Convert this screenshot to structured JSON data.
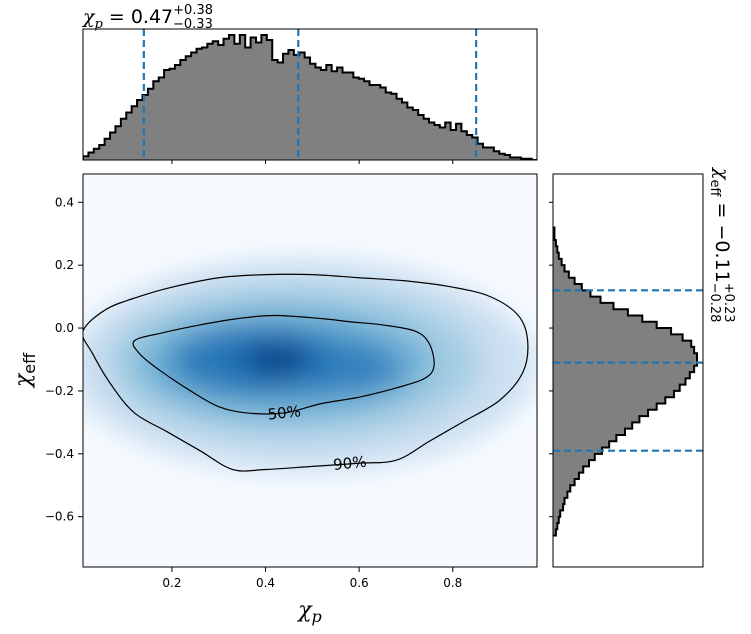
{
  "chart_data": [
    {
      "type": "histogram",
      "panel": "top-marginal",
      "title": {
        "symbol": "χ",
        "symbol_sub": "p",
        "equals": " = 0.47",
        "sup": "+0.38",
        "sub": "−0.33"
      },
      "xlim": [
        0.01,
        0.98
      ],
      "bins": [
        0.01,
        0.0216,
        0.0331,
        0.0447,
        0.0562,
        0.0678,
        0.0793,
        0.0909,
        0.1024,
        0.114,
        0.1255,
        0.1371,
        0.1486,
        0.1602,
        0.1717,
        0.1833,
        0.1948,
        0.2064,
        0.2179,
        0.2295,
        0.241,
        0.2526,
        0.2641,
        0.2757,
        0.2872,
        0.2988,
        0.3103,
        0.3219,
        0.3334,
        0.345,
        0.3565,
        0.3681,
        0.3796,
        0.3912,
        0.4027,
        0.4143,
        0.4258,
        0.4374,
        0.4489,
        0.4605,
        0.472,
        0.4836,
        0.4951,
        0.5067,
        0.5182,
        0.5298,
        0.5413,
        0.5529,
        0.5644,
        0.576,
        0.5875,
        0.5991,
        0.6106,
        0.6222,
        0.6337,
        0.6453,
        0.6568,
        0.6684,
        0.6799,
        0.6915,
        0.703,
        0.7146,
        0.7261,
        0.7377,
        0.7492,
        0.7608,
        0.7723,
        0.7839,
        0.7954,
        0.807,
        0.8185,
        0.8301,
        0.8416,
        0.8532,
        0.8647,
        0.8763,
        0.8878,
        0.8994,
        0.9109,
        0.9225,
        0.934,
        0.9456,
        0.9571,
        0.9687,
        0.98
      ],
      "counts": [
        0.03,
        0.06,
        0.09,
        0.12,
        0.17,
        0.22,
        0.27,
        0.33,
        0.38,
        0.43,
        0.48,
        0.52,
        0.57,
        0.63,
        0.66,
        0.72,
        0.73,
        0.76,
        0.8,
        0.83,
        0.86,
        0.89,
        0.9,
        0.93,
        0.95,
        0.92,
        0.97,
        1.0,
        0.93,
        1.0,
        0.9,
        0.98,
        0.94,
        1.0,
        0.96,
        0.8,
        0.78,
        0.85,
        0.88,
        0.84,
        0.86,
        0.82,
        0.77,
        0.74,
        0.72,
        0.76,
        0.71,
        0.74,
        0.7,
        0.7,
        0.66,
        0.65,
        0.63,
        0.6,
        0.6,
        0.58,
        0.54,
        0.53,
        0.49,
        0.46,
        0.42,
        0.4,
        0.36,
        0.33,
        0.3,
        0.28,
        0.26,
        0.3,
        0.24,
        0.29,
        0.23,
        0.2,
        0.18,
        0.13,
        0.1,
        0.1,
        0.07,
        0.05,
        0.04,
        0.02,
        0.02,
        0.01,
        0.01,
        0.0
      ],
      "quantile_lines": [
        0.14,
        0.47,
        0.85
      ],
      "fill_color": "#808080",
      "edge_color": "#000000",
      "line_color": "#1f77b4"
    },
    {
      "type": "heatmap",
      "panel": "main",
      "xlabel": {
        "symbol": "χ",
        "sub": "p"
      },
      "ylabel": {
        "symbol": "χ",
        "sub": "eff"
      },
      "xlim": [
        0.01,
        0.98
      ],
      "ylim": [
        -0.76,
        0.49
      ],
      "xticks": [
        0.2,
        0.4,
        0.6,
        0.8
      ],
      "yticks": [
        0.4,
        0.2,
        0.0,
        -0.2,
        -0.4,
        -0.6
      ],
      "xtick_labels": [
        "0.2",
        "0.4",
        "0.6",
        "0.8"
      ],
      "ytick_labels": [
        "0.4",
        "0.2",
        "0.0",
        "−0.2",
        "−0.4",
        "−0.6"
      ],
      "colormap": "Blues",
      "density_peak": [
        0.42,
        -0.1
      ],
      "contours": [
        {
          "label": "50%",
          "label_at": [
            0.44,
            -0.27
          ],
          "points": [
            [
              0.12,
              -0.04
            ],
            [
              0.18,
              -0.015
            ],
            [
              0.26,
              0.01
            ],
            [
              0.34,
              0.03
            ],
            [
              0.42,
              0.04
            ],
            [
              0.52,
              0.03
            ],
            [
              0.58,
              0.02
            ],
            [
              0.65,
              0.01
            ],
            [
              0.72,
              -0.01
            ],
            [
              0.75,
              -0.05
            ],
            [
              0.76,
              -0.12
            ],
            [
              0.74,
              -0.16
            ],
            [
              0.68,
              -0.19
            ],
            [
              0.6,
              -0.22
            ],
            [
              0.52,
              -0.24
            ],
            [
              0.44,
              -0.27
            ],
            [
              0.36,
              -0.27
            ],
            [
              0.3,
              -0.25
            ],
            [
              0.24,
              -0.2
            ],
            [
              0.17,
              -0.13
            ],
            [
              0.13,
              -0.08
            ]
          ]
        },
        {
          "label": "90%",
          "label_at": [
            0.58,
            -0.43
          ],
          "points": [
            [
              0.01,
              -0.01
            ],
            [
              0.06,
              0.06
            ],
            [
              0.13,
              0.1
            ],
            [
              0.2,
              0.13
            ],
            [
              0.3,
              0.16
            ],
            [
              0.4,
              0.17
            ],
            [
              0.5,
              0.17
            ],
            [
              0.6,
              0.16
            ],
            [
              0.7,
              0.15
            ],
            [
              0.8,
              0.13
            ],
            [
              0.88,
              0.1
            ],
            [
              0.94,
              0.04
            ],
            [
              0.96,
              -0.04
            ],
            [
              0.95,
              -0.14
            ],
            [
              0.9,
              -0.23
            ],
            [
              0.82,
              -0.3
            ],
            [
              0.75,
              -0.36
            ],
            [
              0.68,
              -0.42
            ],
            [
              0.6,
              -0.43
            ],
            [
              0.5,
              -0.44
            ],
            [
              0.4,
              -0.45
            ],
            [
              0.33,
              -0.45
            ],
            [
              0.26,
              -0.39
            ],
            [
              0.19,
              -0.33
            ],
            [
              0.12,
              -0.27
            ],
            [
              0.07,
              -0.18
            ],
            [
              0.03,
              -0.08
            ]
          ]
        }
      ]
    },
    {
      "type": "histogram",
      "panel": "right-marginal",
      "orientation": "horizontal",
      "title": {
        "symbol": "χ",
        "symbol_sub": "eff",
        "equals": " = −0.11",
        "sup": "+0.23",
        "sub": "−0.28"
      },
      "ylim": [
        -0.76,
        0.49
      ],
      "bins": [
        -0.66,
        -0.64,
        -0.62,
        -0.6,
        -0.58,
        -0.56,
        -0.54,
        -0.52,
        -0.5,
        -0.48,
        -0.46,
        -0.44,
        -0.42,
        -0.4,
        -0.38,
        -0.36,
        -0.34,
        -0.32,
        -0.3,
        -0.28,
        -0.26,
        -0.24,
        -0.22,
        -0.2,
        -0.18,
        -0.16,
        -0.14,
        -0.12,
        -0.1,
        -0.08,
        -0.06,
        -0.04,
        -0.02,
        0.0,
        0.02,
        0.04,
        0.06,
        0.08,
        0.1,
        0.12,
        0.14,
        0.16,
        0.18,
        0.2,
        0.22,
        0.24,
        0.26,
        0.28,
        0.3,
        0.32
      ],
      "counts": [
        0.02,
        0.03,
        0.04,
        0.05,
        0.07,
        0.08,
        0.1,
        0.12,
        0.15,
        0.18,
        0.21,
        0.25,
        0.29,
        0.34,
        0.39,
        0.44,
        0.5,
        0.55,
        0.6,
        0.66,
        0.72,
        0.78,
        0.84,
        0.88,
        0.92,
        0.95,
        0.98,
        1.0,
        1.0,
        0.98,
        0.96,
        0.9,
        0.82,
        0.72,
        0.62,
        0.52,
        0.42,
        0.33,
        0.26,
        0.2,
        0.15,
        0.11,
        0.08,
        0.06,
        0.04,
        0.03,
        0.02,
        0.01,
        0.01
      ],
      "quantile_lines": [
        -0.39,
        -0.11,
        0.12
      ],
      "fill_color": "#808080",
      "edge_color": "#000000",
      "line_color": "#1f77b4"
    }
  ]
}
